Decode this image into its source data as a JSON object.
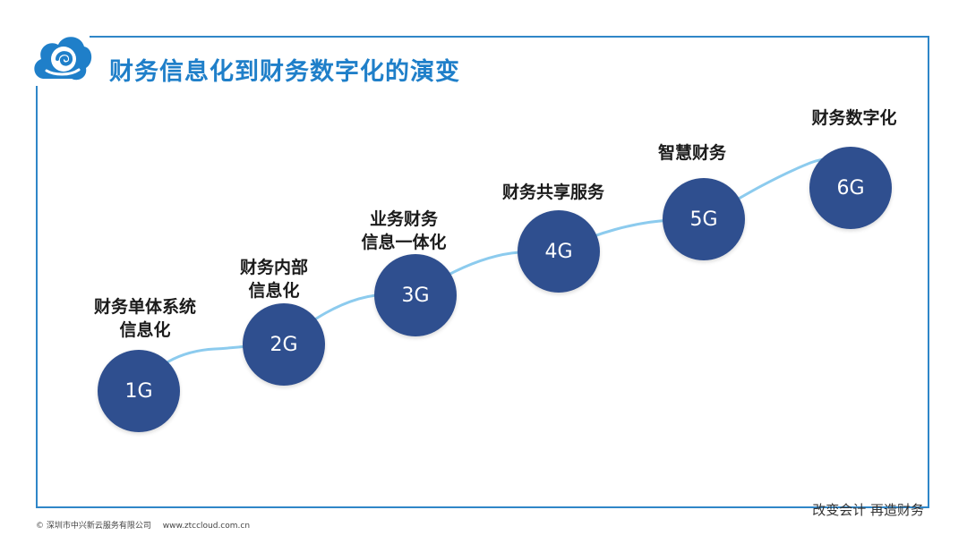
{
  "title": "财务信息化到财务数字化的演变",
  "stages": [
    {
      "id": "1G",
      "label_lines": [
        "财务单体系统",
        "信息化"
      ]
    },
    {
      "id": "2G",
      "label_lines": [
        "财务内部",
        "信息化"
      ]
    },
    {
      "id": "3G",
      "label_lines": [
        "业务财务",
        "信息一体化"
      ]
    },
    {
      "id": "4G",
      "label_lines": [
        "财务共享服务"
      ]
    },
    {
      "id": "5G",
      "label_lines": [
        "智慧财务"
      ]
    },
    {
      "id": "6G",
      "label_lines": [
        "财务数字化"
      ]
    }
  ],
  "slogan": "改变会计  再造财务",
  "footer": {
    "copyright": "© 深圳市中兴新云服务有限公司",
    "website": "www.ztccloud.com.cn"
  },
  "colors": {
    "brand_blue": "#1f7fc9",
    "frame_blue": "#2f86c8",
    "circle_navy": "#2f4f8f",
    "curve_light_blue": "#8ccbee"
  },
  "icons": {
    "logo": "cloud-swirl-logo-icon"
  }
}
